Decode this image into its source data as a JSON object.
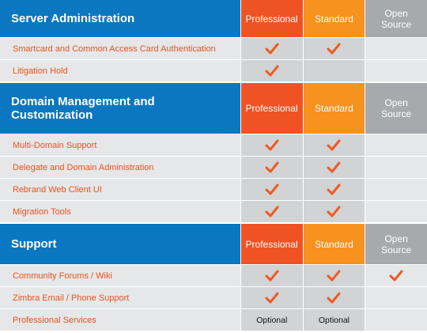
{
  "sections": [
    {
      "title": "Server Administration",
      "columns": [
        "Professional",
        "Standard",
        "Open Source"
      ],
      "rows": [
        {
          "feature": "Smartcard and Common Access Card Authentication",
          "cells": [
            true,
            true,
            false
          ]
        },
        {
          "feature": "Litigation Hold",
          "cells": [
            true,
            false,
            false
          ]
        }
      ]
    },
    {
      "title": "Domain Management and Customization",
      "columns": [
        "Professional",
        "Standard",
        "Open Source"
      ],
      "rows": [
        {
          "feature": "Multi-Domain Support",
          "cells": [
            true,
            true,
            false
          ]
        },
        {
          "feature": "Delegate and Domain Administration",
          "cells": [
            true,
            true,
            false
          ]
        },
        {
          "feature": "Rebrand Web Client UI",
          "cells": [
            true,
            true,
            false
          ]
        },
        {
          "feature": "Migration Tools",
          "cells": [
            true,
            true,
            false
          ]
        }
      ]
    },
    {
      "title": "Support",
      "columns": [
        "Professional",
        "Standard",
        "Open Source"
      ],
      "rows": [
        {
          "feature": "Community Forums / Wiki",
          "cells": [
            true,
            true,
            true
          ]
        },
        {
          "feature": "Zimbra Email / Phone Support",
          "cells": [
            true,
            true,
            false
          ]
        },
        {
          "feature": "Professional Services",
          "cells": [
            "Optional",
            "Optional",
            false
          ]
        }
      ]
    }
  ]
}
